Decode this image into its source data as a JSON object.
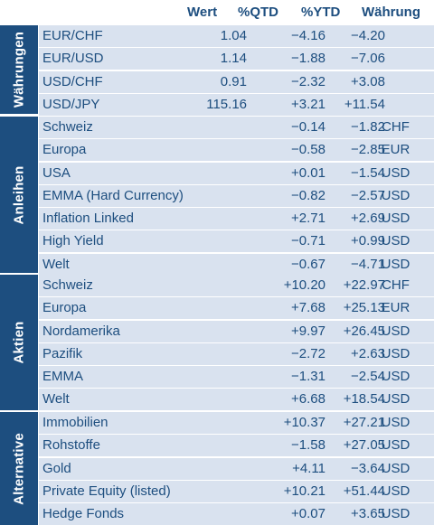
{
  "header": {
    "wert": "Wert",
    "qtd": "%QTD",
    "ytd": "%YTD",
    "currency": "Währung"
  },
  "sections": [
    {
      "title": "Währungen",
      "rows": [
        {
          "name": "EUR/CHF",
          "wert": "1.04",
          "qtd": "−4.16",
          "ytd": "−4.20",
          "currency": ""
        },
        {
          "name": "EUR/USD",
          "wert": "1.14",
          "qtd": "−1.88",
          "ytd": "−7.06",
          "currency": ""
        },
        {
          "name": "USD/CHF",
          "wert": "0.91",
          "qtd": "−2.32",
          "ytd": "+3.08",
          "currency": ""
        },
        {
          "name": "USD/JPY",
          "wert": "115.16",
          "qtd": "+3.21",
          "ytd": "+11.54",
          "currency": ""
        }
      ]
    },
    {
      "title": "Anleihen",
      "rows": [
        {
          "name": "Schweiz",
          "wert": "",
          "qtd": "−0.14",
          "ytd": "−1.82",
          "currency": "CHF"
        },
        {
          "name": "Europa",
          "wert": "",
          "qtd": "−0.58",
          "ytd": "−2.85",
          "currency": "EUR"
        },
        {
          "name": "USA",
          "wert": "",
          "qtd": "+0.01",
          "ytd": "−1.54",
          "currency": "USD"
        },
        {
          "name": "EMMA (Hard Currency)",
          "wert": "",
          "qtd": "−0.82",
          "ytd": "−2.57",
          "currency": "USD"
        },
        {
          "name": "Inflation Linked",
          "wert": "",
          "qtd": "+2.71",
          "ytd": "+2.69",
          "currency": "USD"
        },
        {
          "name": "High Yield",
          "wert": "",
          "qtd": "−0.71",
          "ytd": "+0.99",
          "currency": "USD"
        },
        {
          "name": "Welt",
          "wert": "",
          "qtd": "−0.67",
          "ytd": "−4.71",
          "currency": "USD"
        }
      ]
    },
    {
      "title": "Aktien",
      "rows": [
        {
          "name": "Schweiz",
          "wert": "",
          "qtd": "+10.20",
          "ytd": "+22.97",
          "currency": "CHF"
        },
        {
          "name": "Europa",
          "wert": "",
          "qtd": "+7.68",
          "ytd": "+25.13",
          "currency": "EUR"
        },
        {
          "name": "Nordamerika",
          "wert": "",
          "qtd": "+9.97",
          "ytd": "+26.45",
          "currency": "USD"
        },
        {
          "name": "Pazifik",
          "wert": "",
          "qtd": "−2.72",
          "ytd": "+2.63",
          "currency": "USD"
        },
        {
          "name": "EMMA",
          "wert": "",
          "qtd": "−1.31",
          "ytd": "−2.54",
          "currency": "USD"
        },
        {
          "name": "Welt",
          "wert": "",
          "qtd": "+6.68",
          "ytd": "+18.54",
          "currency": "USD"
        }
      ]
    },
    {
      "title": "Alternative",
      "rows": [
        {
          "name": "Immobilien",
          "wert": "",
          "qtd": "+10.37",
          "ytd": "+27.21",
          "currency": "USD"
        },
        {
          "name": "Rohstoffe",
          "wert": "",
          "qtd": "−1.58",
          "ytd": "+27.05",
          "currency": "USD"
        },
        {
          "name": "Gold",
          "wert": "",
          "qtd": "+4.11",
          "ytd": "−3.64",
          "currency": "USD"
        },
        {
          "name": "Private Equity (listed)",
          "wert": "",
          "qtd": "+10.21",
          "ytd": "+51.44",
          "currency": "USD"
        },
        {
          "name": "Hedge Fonds",
          "wert": "",
          "qtd": "+0.07",
          "ytd": "+3.65",
          "currency": "USD"
        }
      ]
    }
  ],
  "colors": {
    "primary": "#1d4e7f",
    "row_background": "#d9e2ef",
    "background": "#ffffff"
  }
}
